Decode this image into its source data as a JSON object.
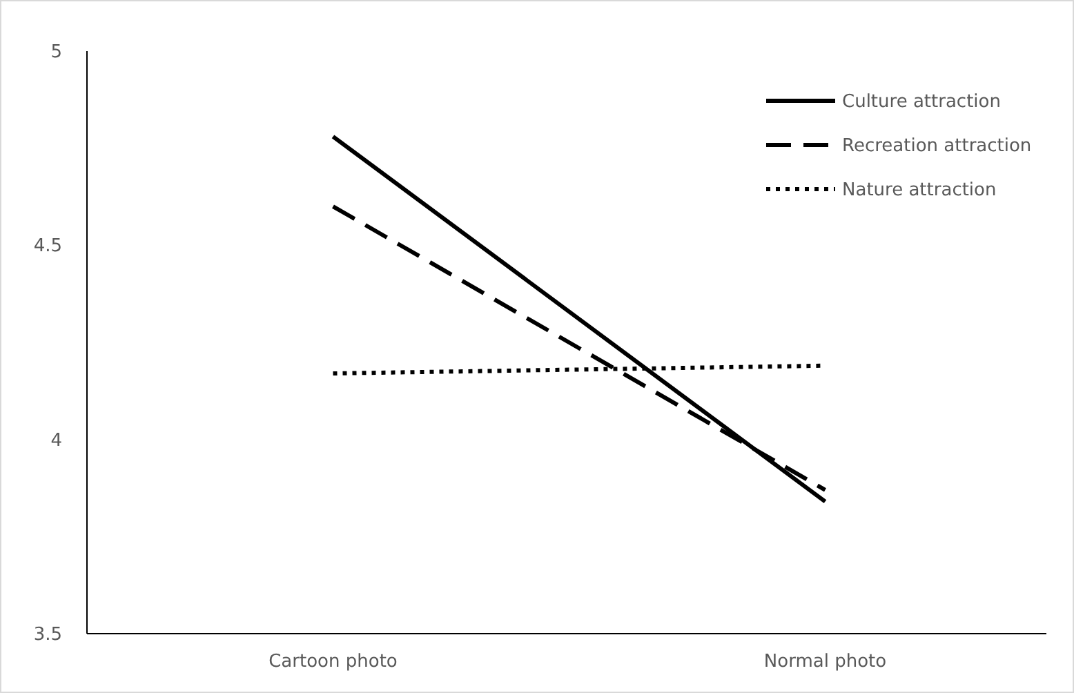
{
  "chart_data": {
    "type": "line",
    "categories": [
      "Cartoon photo",
      "Normal photo"
    ],
    "series": [
      {
        "name": "Culture attraction",
        "color": "#000000",
        "line_style": "solid",
        "values": [
          4.78,
          3.84
        ]
      },
      {
        "name": "Recreation attraction",
        "color": "#000000",
        "line_style": "dashed",
        "values": [
          4.6,
          3.87
        ]
      },
      {
        "name": "Nature attraction",
        "color": "#000000",
        "line_style": "dotted",
        "values": [
          4.17,
          4.19
        ]
      }
    ],
    "ylim": [
      3.5,
      5
    ],
    "yticks": [
      {
        "value": 3.5,
        "label": "3.5"
      },
      {
        "value": 4,
        "label": "4"
      },
      {
        "value": 4.5,
        "label": "4.5"
      },
      {
        "value": 5,
        "label": "5"
      }
    ],
    "grid": false,
    "legend": "top right",
    "marker": "none"
  }
}
